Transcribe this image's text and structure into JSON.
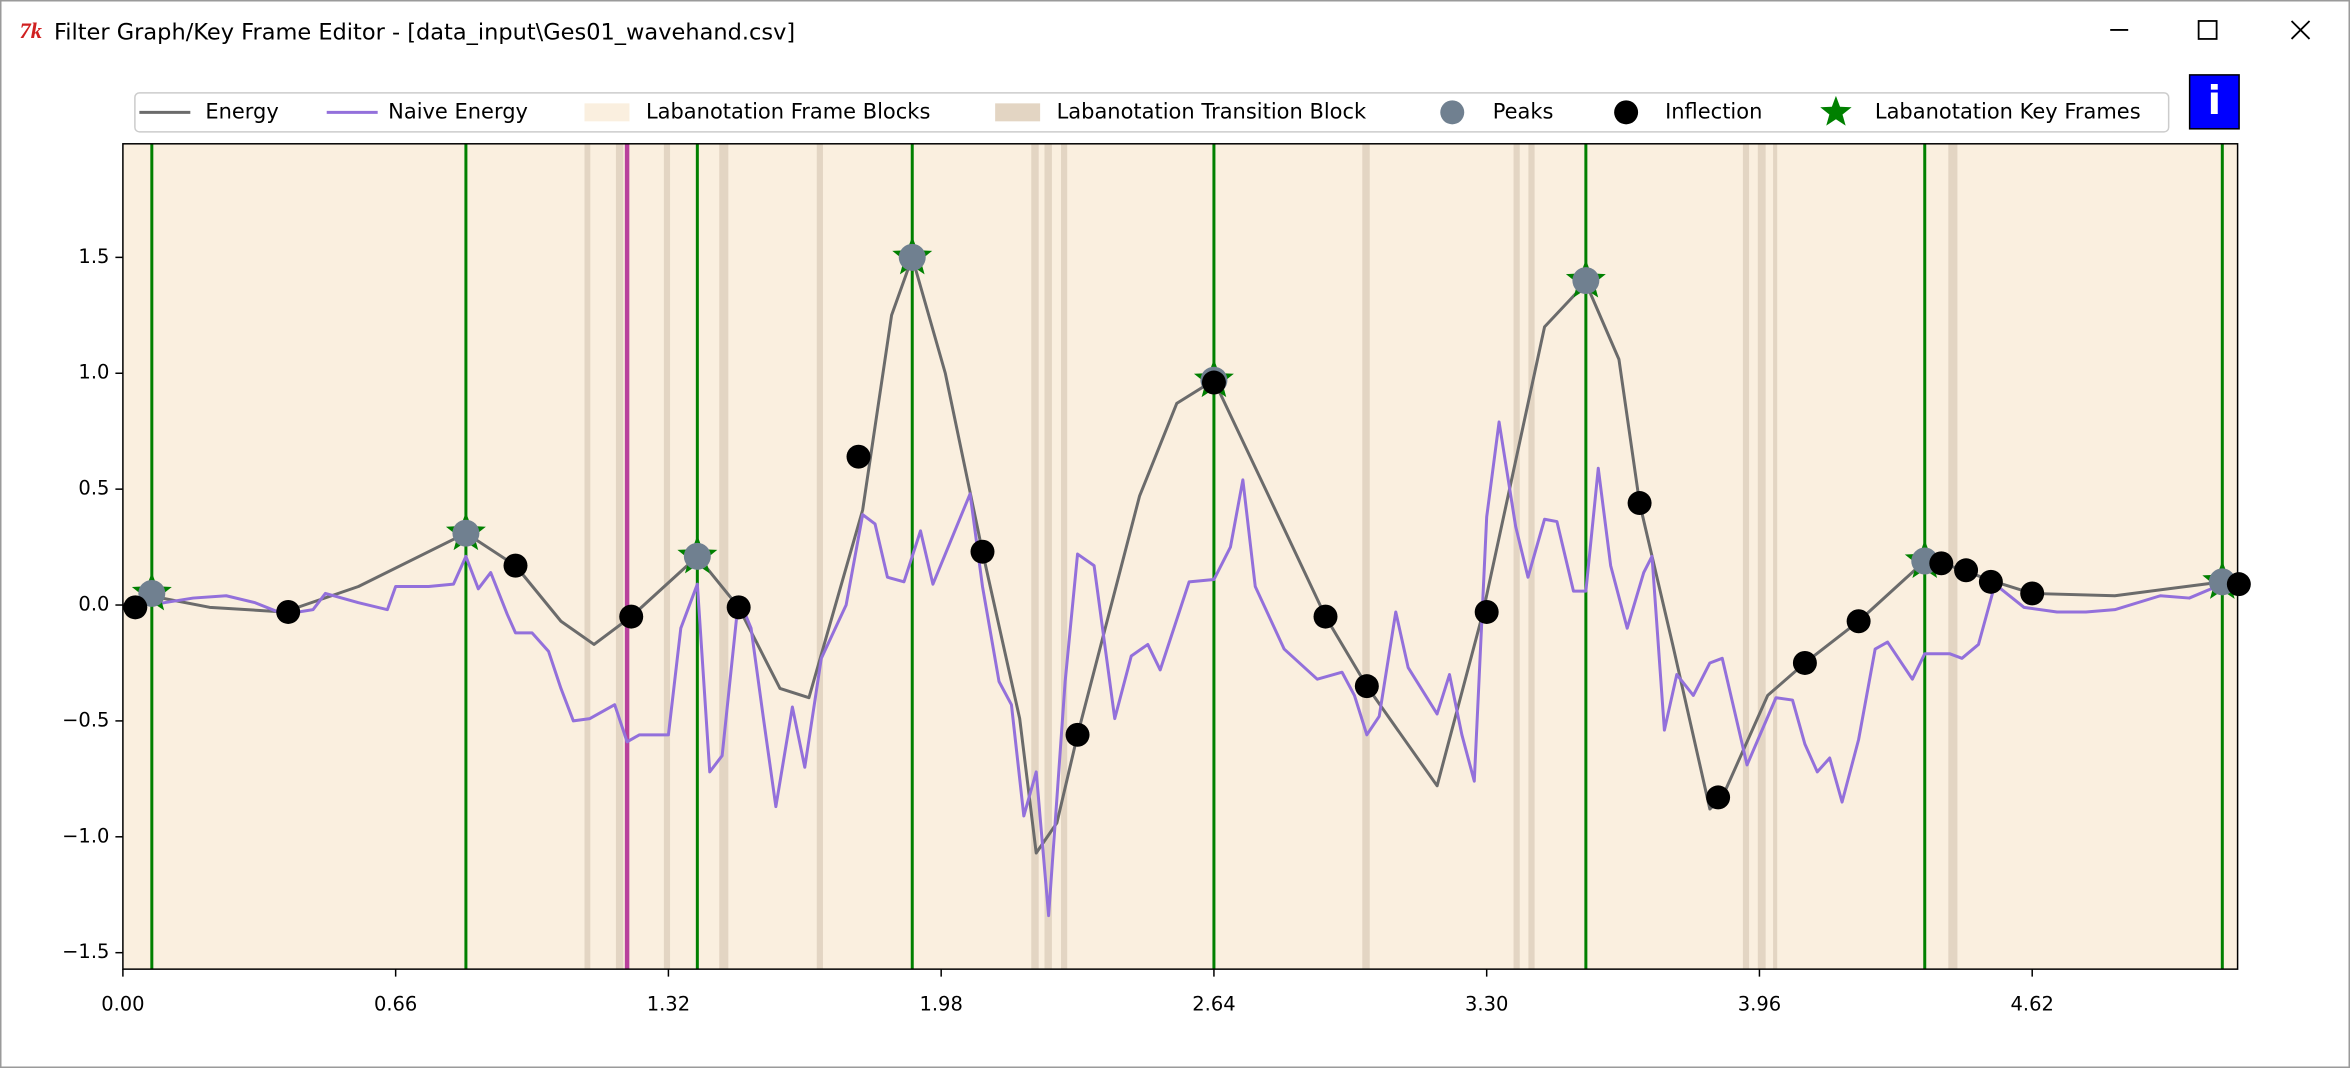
{
  "window": {
    "title": "Filter Graph/Key Frame Editor - [data_input\\Ges01_wavehand.csv]",
    "info_button": "i"
  },
  "chart_data": {
    "type": "line",
    "xlim": [
      0,
      5.117
    ],
    "ylim": [
      -1.571,
      1.99
    ],
    "xticks": [
      {
        "value": 0,
        "label": "0.00"
      },
      0.66,
      1.32,
      1.98,
      2.64,
      {
        "value": 3.3,
        "label": "3.30"
      },
      3.96,
      4.62
    ],
    "yticks": [
      1.5,
      {
        "value": 1,
        "label": "1.0"
      },
      0.5,
      {
        "value": 0,
        "label": "0.0"
      },
      {
        "value": -0.5,
        "label": "−0.5"
      },
      {
        "value": -1,
        "label": "−1.0"
      },
      {
        "value": -1.5,
        "label": "−1.5"
      }
    ],
    "series": [
      {
        "name": "Energy",
        "color": "#6b6b6b",
        "x": [
          0,
          0.065,
          0.21,
          0.39,
          0.57,
          0.83,
          0.95,
          1.06,
          1.14,
          1.23,
          1.39,
          1.49,
          1.59,
          1.66,
          1.79,
          1.86,
          1.91,
          1.99,
          2.08,
          2.17,
          2.21,
          2.26,
          2.31,
          2.46,
          2.55,
          2.64,
          2.77,
          2.91,
          3.01,
          3.18,
          3.29,
          3.44,
          3.54,
          3.62,
          3.67,
          3.75,
          3.84,
          3.87,
          3.98,
          4.07,
          4.2,
          4.36,
          4.42,
          4.53,
          4.62,
          4.82,
          5.08,
          5.12
        ],
        "values": [
          0,
          0.04,
          -0.01,
          -0.03,
          0.08,
          0.31,
          0.17,
          -0.07,
          -0.17,
          -0.05,
          0.21,
          -0.01,
          -0.36,
          -0.4,
          0.41,
          1.25,
          1.5,
          1.0,
          0.23,
          -0.49,
          -1.07,
          -0.94,
          -0.56,
          0.47,
          0.87,
          0.97,
          0.48,
          -0.05,
          -0.35,
          -0.78,
          -0.04,
          1.2,
          1.39,
          1.06,
          0.44,
          -0.17,
          -0.88,
          -0.83,
          -0.39,
          -0.25,
          -0.07,
          0.19,
          0.17,
          0.1,
          0.05,
          0.04,
          0.1,
          0.09
        ]
      },
      {
        "name": "Naive Energy",
        "color": "#9370db",
        "x": [
          0.03,
          0.1,
          0.17,
          0.25,
          0.32,
          0.39,
          0.46,
          0.49,
          0.57,
          0.64,
          0.66,
          0.74,
          0.8,
          0.83,
          0.86,
          0.89,
          0.93,
          0.95,
          0.99,
          1.03,
          1.06,
          1.09,
          1.13,
          1.19,
          1.22,
          1.25,
          1.32,
          1.35,
          1.39,
          1.42,
          1.45,
          1.49,
          1.52,
          1.55,
          1.58,
          1.62,
          1.65,
          1.69,
          1.75,
          1.79,
          1.82,
          1.85,
          1.89,
          1.93,
          1.96,
          2.05,
          2.08,
          2.12,
          2.15,
          2.18,
          2.21,
          2.24,
          2.28,
          2.31,
          2.35,
          2.4,
          2.44,
          2.48,
          2.51,
          2.58,
          2.64,
          2.68,
          2.71,
          2.74,
          2.81,
          2.89,
          2.95,
          2.98,
          3.01,
          3.04,
          3.08,
          3.11,
          3.18,
          3.21,
          3.24,
          3.27,
          3.3,
          3.33,
          3.37,
          3.4,
          3.44,
          3.47,
          3.51,
          3.54,
          3.57,
          3.6,
          3.64,
          3.68,
          3.7,
          3.73,
          3.76,
          3.8,
          3.84,
          3.87,
          3.93,
          4.0,
          4.04,
          4.07,
          4.1,
          4.13,
          4.16,
          4.2,
          4.24,
          4.27,
          4.33,
          4.36,
          4.42,
          4.45,
          4.49,
          4.53,
          4.6,
          4.68,
          4.75,
          4.82,
          4.93,
          5.0,
          5.08,
          5.12
        ],
        "values": [
          0,
          0.01,
          0.03,
          0.04,
          0.01,
          -0.04,
          -0.02,
          0.05,
          0.01,
          -0.02,
          0.08,
          0.08,
          0.09,
          0.21,
          0.07,
          0.14,
          -0.04,
          -0.12,
          -0.12,
          -0.2,
          -0.36,
          -0.5,
          -0.49,
          -0.43,
          -0.59,
          -0.56,
          -0.56,
          -0.1,
          0.09,
          -0.72,
          -0.65,
          0.03,
          -0.1,
          -0.49,
          -0.87,
          -0.44,
          -0.7,
          -0.23,
          0,
          0.39,
          0.35,
          0.12,
          0.1,
          0.32,
          0.09,
          0.48,
          0.08,
          -0.33,
          -0.43,
          -0.91,
          -0.72,
          -1.34,
          -0.33,
          0.22,
          0.17,
          -0.49,
          -0.22,
          -0.17,
          -0.28,
          0.1,
          0.11,
          0.25,
          0.54,
          0.08,
          -0.19,
          -0.32,
          -0.29,
          -0.39,
          -0.56,
          -0.48,
          -0.03,
          -0.27,
          -0.47,
          -0.3,
          -0.56,
          -0.76,
          0.38,
          0.79,
          0.34,
          0.12,
          0.37,
          0.36,
          0.06,
          0.06,
          0.59,
          0.17,
          -0.1,
          0.14,
          0.21,
          -0.54,
          -0.3,
          -0.39,
          -0.25,
          -0.23,
          -0.69,
          -0.4,
          -0.41,
          -0.6,
          -0.72,
          -0.66,
          -0.85,
          -0.58,
          -0.19,
          -0.16,
          -0.32,
          -0.21,
          -0.21,
          -0.23,
          -0.17,
          0.09,
          -0.01,
          -0.03,
          -0.03,
          -0.02,
          0.04,
          0.03,
          0.09,
          0.1
        ]
      }
    ],
    "frame_blocks": {
      "name": "Labanotation Frame Blocks",
      "color": "#faefdf"
    },
    "transition_blocks": {
      "name": "Labanotation Transition Block",
      "color": "#e3d5c3",
      "ranges": [
        [
          1.117,
          1.131
        ],
        [
          1.193,
          1.211
        ],
        [
          1.309,
          1.324
        ],
        [
          1.443,
          1.465
        ],
        [
          1.679,
          1.694
        ],
        [
          2.198,
          2.216
        ],
        [
          2.23,
          2.248
        ],
        [
          2.27,
          2.285
        ],
        [
          2.999,
          3.017
        ],
        [
          3.365,
          3.38
        ],
        [
          3.401,
          3.416
        ],
        [
          3.92,
          3.935
        ],
        [
          3.956,
          3.975
        ],
        [
          3.993,
          4.003
        ],
        [
          4.417,
          4.439
        ]
      ]
    },
    "peaks": {
      "name": "Peaks",
      "color": "#708090",
      "x": [
        0.07,
        0.83,
        1.39,
        1.91,
        2.64,
        3.54,
        4.36,
        5.08
      ],
      "values": [
        0.05,
        0.31,
        0.21,
        1.5,
        0.97,
        1.4,
        0.19,
        0.1
      ]
    },
    "inflection": {
      "name": "Inflection",
      "color": "#000000",
      "x": [
        0.03,
        0.4,
        0.95,
        1.23,
        1.49,
        1.78,
        2.08,
        2.31,
        2.64,
        2.91,
        3.01,
        3.3,
        3.67,
        3.86,
        4.07,
        4.2,
        4.4,
        4.46,
        4.52,
        4.62,
        5.12
      ],
      "values": [
        -0.01,
        -0.03,
        0.17,
        -0.05,
        -0.01,
        0.64,
        0.23,
        -0.56,
        0.96,
        -0.05,
        -0.35,
        -0.03,
        0.44,
        -0.83,
        -0.25,
        -0.07,
        0.18,
        0.15,
        0.1,
        0.05,
        0.09
      ]
    },
    "key_frames": {
      "name": "Labanotation Key Frames",
      "color": "#008000",
      "x": [
        0.07,
        0.83,
        1.39,
        1.91,
        2.64,
        3.54,
        4.36,
        5.08
      ],
      "values": [
        0.05,
        0.31,
        0.21,
        1.5,
        0.97,
        1.4,
        0.19,
        0.1
      ]
    },
    "cursor": {
      "x": 1.22,
      "color": "#b8409c"
    }
  }
}
